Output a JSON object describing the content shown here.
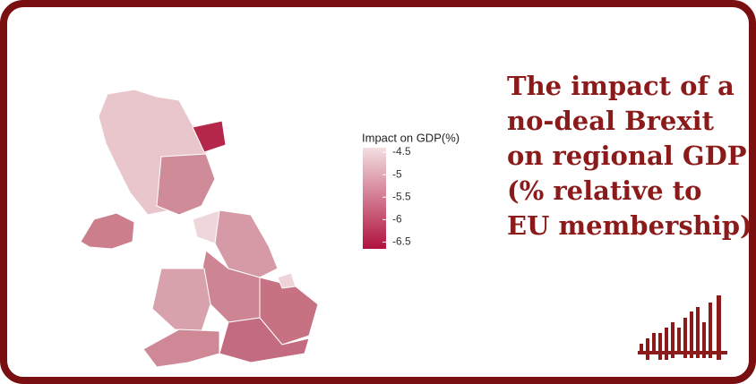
{
  "title_lines": [
    "The impact of a",
    "no-deal Brexit",
    "on regional GDP",
    "(% relative to",
    "EU membership)"
  ],
  "legend": {
    "title": "Impact on GDP(%)",
    "ticks": [
      -4.5,
      -5.0,
      -5.5,
      -6.0,
      -6.5
    ],
    "scale_limits": [
      -4.4,
      -6.65
    ],
    "colors": [
      "#f3dfe2",
      "#b0123e"
    ]
  }
}
